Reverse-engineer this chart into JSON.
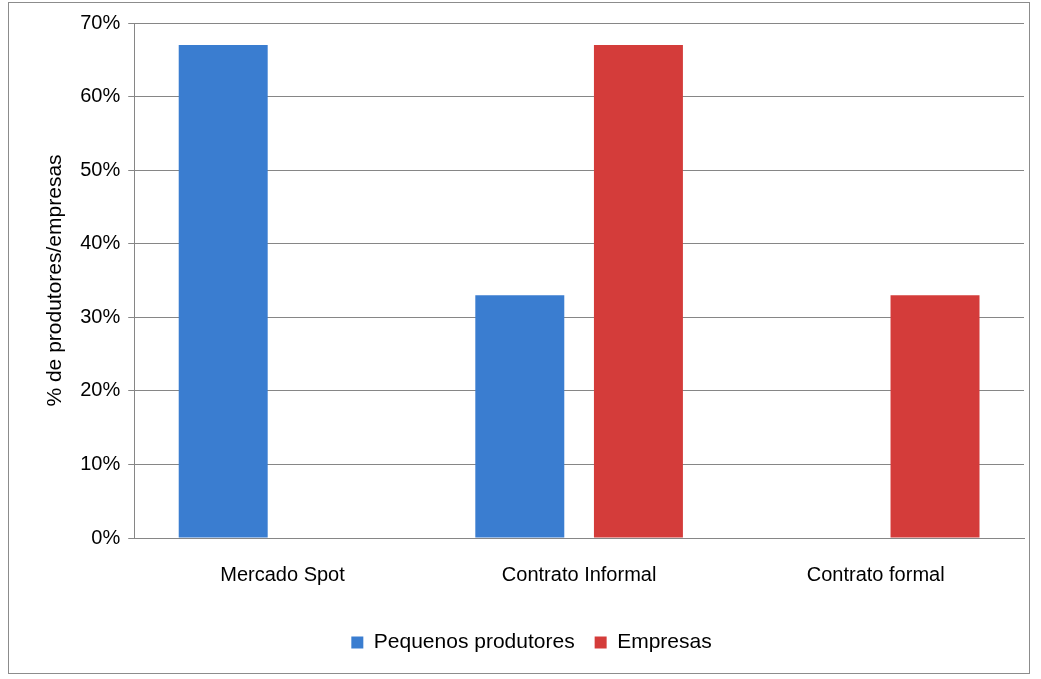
{
  "chart_data": {
    "type": "bar",
    "ylabel": "% de produtores/empresas",
    "categories": [
      "Mercado Spot",
      "Contrato Informal",
      "Contrato formal"
    ],
    "series": [
      {
        "name": "Pequenos produtores",
        "color": "#3a7dd0",
        "values": [
          67,
          33,
          0
        ]
      },
      {
        "name": "Empresas",
        "color": "#d43c3a",
        "values": [
          0,
          67,
          33
        ]
      }
    ],
    "ylim": [
      0,
      70
    ],
    "yticks": [
      {
        "value": 0,
        "label": "0%"
      },
      {
        "value": 10,
        "label": "10%"
      },
      {
        "value": 20,
        "label": "20%"
      },
      {
        "value": 30,
        "label": "30%"
      },
      {
        "value": 40,
        "label": "40%"
      },
      {
        "value": 50,
        "label": "50%"
      },
      {
        "value": 60,
        "label": "60%"
      },
      {
        "value": 70,
        "label": "70%"
      }
    ],
    "grid": "y",
    "legend": "bottom"
  }
}
